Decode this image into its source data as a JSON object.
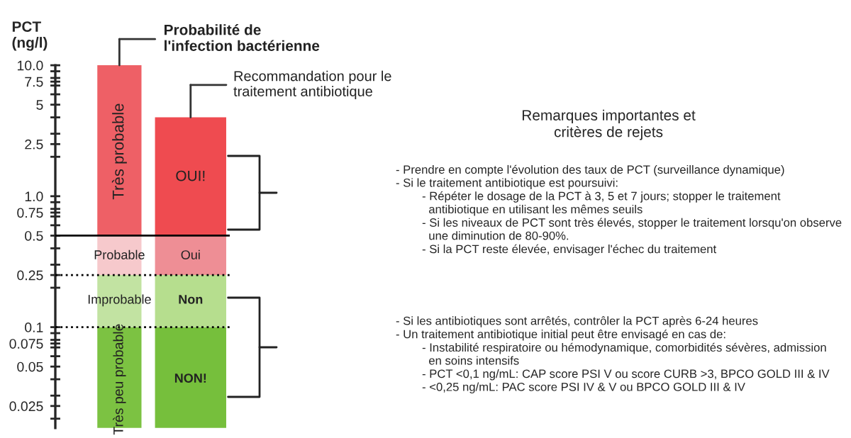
{
  "chart_data": {
    "type": "bar",
    "stacked": true,
    "log": true,
    "categories": [
      null,
      null
    ],
    "ylabel": "PCT\n(ng/l)",
    "series": [
      {
        "colors": [
          "#7cc242",
          "#76bf3c"
        ],
        "values": [
          0.1,
          0.1
        ]
      },
      {
        "colors": [
          "#c2e3a2",
          "#b6de8e"
        ],
        "values": [
          0.15,
          0.15
        ]
      },
      {
        "colors": [
          "#f6c9cc",
          "#ee8e95"
        ],
        "values": [
          0.25,
          0.25
        ]
      },
      {
        "colors": [
          "#ee6066",
          "#ef4b50"
        ],
        "values": [
          9.5,
          3.5
        ]
      }
    ],
    "ylim": [
      0.017,
      10
    ],
    "yticks": [
      {
        "value": 10,
        "label": "10.0"
      },
      7.5,
      5,
      2.5,
      {
        "value": 1,
        "label": "1.0"
      },
      0.75,
      0.5,
      0.25,
      0.1,
      0.075,
      0.05,
      0.025,
      {
        "value": 9,
        "label": null
      },
      {
        "value": 8,
        "label": null
      },
      {
        "value": 7,
        "label": null
      },
      {
        "value": 6,
        "label": null
      },
      {
        "value": 4,
        "label": null
      },
      {
        "value": 3,
        "label": null
      },
      {
        "value": 2,
        "label": null
      },
      {
        "value": 0.9,
        "label": null
      },
      {
        "value": 0.8,
        "label": null
      },
      {
        "value": 0.7,
        "label": null
      },
      {
        "value": 0.6,
        "label": null
      },
      {
        "value": 0.4,
        "label": null
      },
      {
        "value": 0.3,
        "label": null
      },
      {
        "value": 0.2,
        "label": null
      },
      {
        "value": 0.09,
        "label": null
      },
      {
        "value": 0.08,
        "label": null
      },
      {
        "value": 0.07,
        "label": null
      },
      {
        "value": 0.06,
        "label": null
      },
      {
        "value": 0.04,
        "label": null
      },
      {
        "value": 0.03,
        "label": null
      },
      {
        "value": 0.02,
        "label": null
      }
    ],
    "ref_lines": [
      {
        "axis": "y",
        "value": 0.5,
        "color": "#000000",
        "line_style": "solid"
      },
      {
        "axis": "y",
        "value": 0.25,
        "color": "#000000",
        "line_style": "dotted"
      },
      {
        "axis": "y",
        "value": 0.1,
        "color": "#000000",
        "line_style": "dotted"
      }
    ],
    "annotations": [
      "Probabilité de\nl'infection bactérienne",
      "Recommandation pour le\ntraitement antibiotique",
      "Remarques importantes et\ncritères de rejets",
      "- Prendre en compte l'évolution des taux de PCT (surveillance dynamique)\n- Si le traitement antibiotique est poursuivi:\n        - Répéter le dosage de la PCT à 3, 5 et 7 jours; stopper le traitement\n          antibiotique en utilisant les mêmes seuils\n        - Si les niveaux de PCT sont très élevés, stopper le traitement lorsqu'on observe\n          une diminution de 80-90%.\n        - Si la PCT reste élevée, envisager l'échec du traitement",
      "- Si les antibiotiques sont arrêtés, contrôler la PCT après 6-24 heures\n- Un traitement antibiotique initial peut être envisagé en cas de:\n        - Instabilité respiratoire ou hémodynamique, comorbidités sévères, admission\n          en soins intensifs\n        - PCT <0,1 ng/mL: CAP score PSI V ou score CURB >3, BPCO GOLD III & IV\n        - <0,25 ng/mL: PAC score PSI IV & V ou BPCO GOLD III & IV",
      "Très peu probable",
      "Improbable",
      "Probable",
      "Très probable",
      "NON!",
      "Non",
      "Oui",
      "OUI!"
    ]
  }
}
